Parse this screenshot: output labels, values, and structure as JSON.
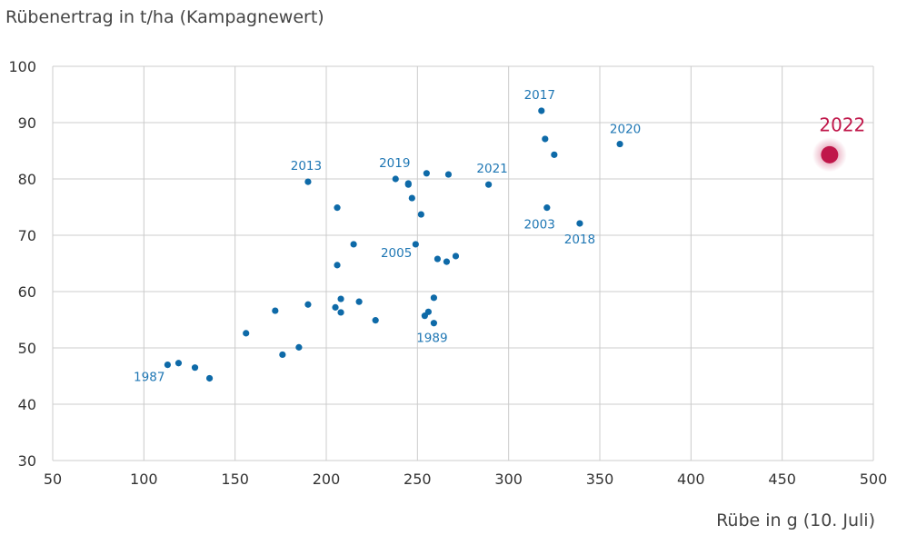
{
  "chart_data": {
    "type": "scatter",
    "xlabel": "Rübe in g (10. Juli)",
    "ylabel": "Rübenertrag in t/ha (Kampagnewert)",
    "xlim": [
      50,
      500
    ],
    "ylim": [
      30,
      100
    ],
    "xticks": [
      50,
      100,
      150,
      200,
      250,
      300,
      350,
      400,
      450,
      500
    ],
    "yticks": [
      30,
      40,
      50,
      60,
      70,
      80,
      90,
      100
    ],
    "grid": true,
    "colors": {
      "points": "#0e6aa8",
      "labels": "#1f77b4",
      "highlight": "#c0174a",
      "grid": "#cccccc",
      "axis_text": "#333333"
    },
    "points": [
      {
        "x": 113,
        "y": 47
      },
      {
        "x": 119,
        "y": 47.3
      },
      {
        "x": 128,
        "y": 46.5
      },
      {
        "x": 136,
        "y": 44.6
      },
      {
        "x": 156,
        "y": 52.6
      },
      {
        "x": 172,
        "y": 56.6
      },
      {
        "x": 176,
        "y": 48.8
      },
      {
        "x": 185,
        "y": 50.1
      },
      {
        "x": 190,
        "y": 57.7
      },
      {
        "x": 190,
        "y": 79.5
      },
      {
        "x": 205,
        "y": 57.2
      },
      {
        "x": 206,
        "y": 64.7
      },
      {
        "x": 206,
        "y": 74.9
      },
      {
        "x": 208,
        "y": 58.7
      },
      {
        "x": 208,
        "y": 56.3
      },
      {
        "x": 215,
        "y": 68.4
      },
      {
        "x": 218,
        "y": 58.2
      },
      {
        "x": 227,
        "y": 54.9
      },
      {
        "x": 238,
        "y": 80
      },
      {
        "x": 245,
        "y": 79.2
      },
      {
        "x": 245,
        "y": 79
      },
      {
        "x": 247,
        "y": 76.6
      },
      {
        "x": 249,
        "y": 68.4
      },
      {
        "x": 252,
        "y": 73.7
      },
      {
        "x": 254,
        "y": 55.7
      },
      {
        "x": 255,
        "y": 81
      },
      {
        "x": 256,
        "y": 56.4
      },
      {
        "x": 259,
        "y": 58.9
      },
      {
        "x": 259,
        "y": 54.4
      },
      {
        "x": 261,
        "y": 65.8
      },
      {
        "x": 266,
        "y": 65.3
      },
      {
        "x": 267,
        "y": 80.8
      },
      {
        "x": 271,
        "y": 66.3
      },
      {
        "x": 289,
        "y": 79
      },
      {
        "x": 318,
        "y": 92.1
      },
      {
        "x": 320,
        "y": 87.1
      },
      {
        "x": 321,
        "y": 74.9
      },
      {
        "x": 325,
        "y": 84.3
      },
      {
        "x": 339,
        "y": 72.1
      },
      {
        "x": 361,
        "y": 86.2
      }
    ],
    "annotations": [
      {
        "text": "1987",
        "x": 113,
        "y": 47,
        "anchor": "end",
        "dx": -3,
        "dy": 18
      },
      {
        "text": "2013",
        "x": 190,
        "y": 79.5,
        "anchor": "middle",
        "dx": -2,
        "dy": -13
      },
      {
        "text": "2019",
        "x": 238,
        "y": 80,
        "anchor": "middle",
        "dx": -1,
        "dy": -13
      },
      {
        "text": "2005",
        "x": 249,
        "y": 68.4,
        "anchor": "end",
        "dx": -4,
        "dy": 14
      },
      {
        "text": "1989",
        "x": 259,
        "y": 54.4,
        "anchor": "middle",
        "dx": -2,
        "dy": 21
      },
      {
        "text": "2021",
        "x": 289,
        "y": 79,
        "anchor": "middle",
        "dx": 4,
        "dy": -13
      },
      {
        "text": "2017",
        "x": 318,
        "y": 92.1,
        "anchor": "middle",
        "dx": -2,
        "dy": -13
      },
      {
        "text": "2003",
        "x": 321,
        "y": 74.9,
        "anchor": "end",
        "dx": 9,
        "dy": 23
      },
      {
        "text": "2018",
        "x": 339,
        "y": 72.1,
        "anchor": "middle",
        "dx": 0,
        "dy": 22
      },
      {
        "text": "2020",
        "x": 361,
        "y": 86.2,
        "anchor": "middle",
        "dx": 6,
        "dy": -12
      }
    ],
    "highlight": {
      "label": "2022",
      "x": 476,
      "y": 84.3
    }
  }
}
